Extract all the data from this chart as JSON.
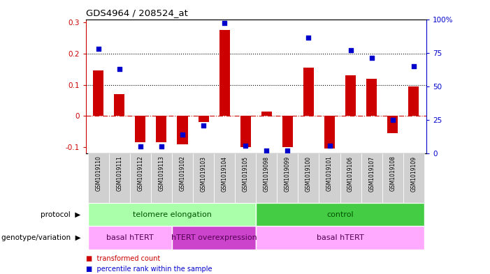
{
  "title": "GDS4964 / 208524_at",
  "samples": [
    "GSM1019110",
    "GSM1019111",
    "GSM1019112",
    "GSM1019113",
    "GSM1019102",
    "GSM1019103",
    "GSM1019104",
    "GSM1019105",
    "GSM1019098",
    "GSM1019099",
    "GSM1019100",
    "GSM1019101",
    "GSM1019106",
    "GSM1019107",
    "GSM1019108",
    "GSM1019109"
  ],
  "bar_values": [
    0.145,
    0.07,
    -0.085,
    -0.085,
    -0.09,
    -0.02,
    0.275,
    -0.1,
    0.015,
    -0.1,
    0.155,
    -0.105,
    0.13,
    0.12,
    -0.055,
    0.095
  ],
  "blue_percentiles": [
    78,
    63,
    5,
    5,
    14,
    21,
    97,
    6,
    2,
    2,
    86,
    6,
    77,
    71,
    25,
    65
  ],
  "bar_color": "#cc0000",
  "blue_color": "#0000cc",
  "ylim_left": [
    -0.12,
    0.31
  ],
  "ylim_right": [
    0,
    100
  ],
  "yticks_left": [
    -0.1,
    0.0,
    0.1,
    0.2,
    0.3
  ],
  "yticks_right": [
    0,
    25,
    50,
    75,
    100
  ],
  "yticklabels_right": [
    "0",
    "25",
    "50",
    "75",
    "100%"
  ],
  "hline_y": [
    0.1,
    0.2
  ],
  "protocol_groups": [
    {
      "label": "telomere elongation",
      "start": 0,
      "end": 8,
      "color": "#aaffaa"
    },
    {
      "label": "control",
      "start": 8,
      "end": 16,
      "color": "#44cc44"
    }
  ],
  "genotype_groups": [
    {
      "label": "basal hTERT",
      "start": 0,
      "end": 4,
      "color": "#ffaaff"
    },
    {
      "label": "hTERT overexpression",
      "start": 4,
      "end": 8,
      "color": "#cc44cc"
    },
    {
      "label": "basal hTERT",
      "start": 8,
      "end": 16,
      "color": "#ffaaff"
    }
  ],
  "legend_items": [
    {
      "label": "transformed count",
      "color": "#cc0000"
    },
    {
      "label": "percentile rank within the sample",
      "color": "#0000cc"
    }
  ],
  "protocol_label": "protocol",
  "genotype_label": "genotype/variation",
  "bar_width": 0.5,
  "bg_color": "#ffffff",
  "zero_line_color": "#cc0000",
  "border_color": "#000000"
}
